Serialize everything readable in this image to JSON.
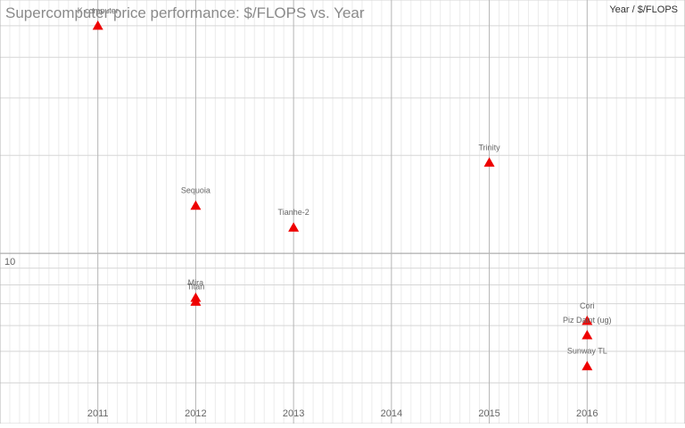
{
  "chart_data": {
    "type": "scatter",
    "title": "Supercomputer price performance: $/FLOPS vs. Year",
    "legend_label": "Year / $/FLOPS",
    "legend_position": "top-right",
    "x_scale": "linear",
    "y_scale": "log",
    "xlim": [
      2010.0,
      2017.0
    ],
    "ylim": [
      3,
      60
    ],
    "x_ticks": [
      2011,
      2012,
      2013,
      2014,
      2015,
      2016
    ],
    "y_tick_labels": [
      {
        "value": 10,
        "label": "10"
      }
    ],
    "grid": true,
    "marker": "triangle",
    "marker_color": "#ee0000",
    "points": [
      {
        "label": "K computer",
        "x": 2011,
        "y": 50
      },
      {
        "label": "Sequoia",
        "x": 2012,
        "y": 14
      },
      {
        "label": "Mira",
        "x": 2012,
        "y": 7.3
      },
      {
        "label": "Titan",
        "x": 2012,
        "y": 7.1
      },
      {
        "label": "Tianhe-2",
        "x": 2013,
        "y": 12
      },
      {
        "label": "Trinity",
        "x": 2015,
        "y": 19
      },
      {
        "label": "Cori",
        "x": 2016,
        "y": 6.2
      },
      {
        "label": "Piz Daint (ug)",
        "x": 2016,
        "y": 5.6
      },
      {
        "label": "Sunway TL",
        "x": 2016,
        "y": 4.5
      }
    ]
  }
}
